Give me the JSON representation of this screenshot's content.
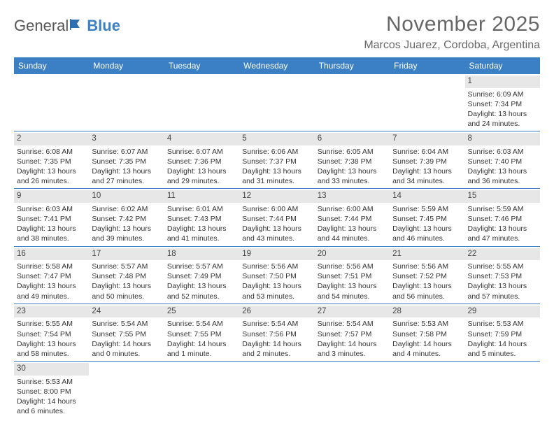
{
  "brand": {
    "part1": "General",
    "part2": "Blue"
  },
  "title": "November 2025",
  "location": "Marcos Juarez, Cordoba, Argentina",
  "colors": {
    "header_bg": "#3b7fc4",
    "header_text": "#ffffff",
    "daynum_bg": "#e7e7e7",
    "rule": "#3b7fc4",
    "body_text": "#333333",
    "title_text": "#666666"
  },
  "weekdays": [
    "Sunday",
    "Monday",
    "Tuesday",
    "Wednesday",
    "Thursday",
    "Friday",
    "Saturday"
  ],
  "weeks": [
    [
      null,
      null,
      null,
      null,
      null,
      null,
      {
        "n": "1",
        "sr": "Sunrise: 6:09 AM",
        "ss": "Sunset: 7:34 PM",
        "d1": "Daylight: 13 hours",
        "d2": "and 24 minutes."
      }
    ],
    [
      {
        "n": "2",
        "sr": "Sunrise: 6:08 AM",
        "ss": "Sunset: 7:35 PM",
        "d1": "Daylight: 13 hours",
        "d2": "and 26 minutes."
      },
      {
        "n": "3",
        "sr": "Sunrise: 6:07 AM",
        "ss": "Sunset: 7:35 PM",
        "d1": "Daylight: 13 hours",
        "d2": "and 27 minutes."
      },
      {
        "n": "4",
        "sr": "Sunrise: 6:07 AM",
        "ss": "Sunset: 7:36 PM",
        "d1": "Daylight: 13 hours",
        "d2": "and 29 minutes."
      },
      {
        "n": "5",
        "sr": "Sunrise: 6:06 AM",
        "ss": "Sunset: 7:37 PM",
        "d1": "Daylight: 13 hours",
        "d2": "and 31 minutes."
      },
      {
        "n": "6",
        "sr": "Sunrise: 6:05 AM",
        "ss": "Sunset: 7:38 PM",
        "d1": "Daylight: 13 hours",
        "d2": "and 33 minutes."
      },
      {
        "n": "7",
        "sr": "Sunrise: 6:04 AM",
        "ss": "Sunset: 7:39 PM",
        "d1": "Daylight: 13 hours",
        "d2": "and 34 minutes."
      },
      {
        "n": "8",
        "sr": "Sunrise: 6:03 AM",
        "ss": "Sunset: 7:40 PM",
        "d1": "Daylight: 13 hours",
        "d2": "and 36 minutes."
      }
    ],
    [
      {
        "n": "9",
        "sr": "Sunrise: 6:03 AM",
        "ss": "Sunset: 7:41 PM",
        "d1": "Daylight: 13 hours",
        "d2": "and 38 minutes."
      },
      {
        "n": "10",
        "sr": "Sunrise: 6:02 AM",
        "ss": "Sunset: 7:42 PM",
        "d1": "Daylight: 13 hours",
        "d2": "and 39 minutes."
      },
      {
        "n": "11",
        "sr": "Sunrise: 6:01 AM",
        "ss": "Sunset: 7:43 PM",
        "d1": "Daylight: 13 hours",
        "d2": "and 41 minutes."
      },
      {
        "n": "12",
        "sr": "Sunrise: 6:00 AM",
        "ss": "Sunset: 7:44 PM",
        "d1": "Daylight: 13 hours",
        "d2": "and 43 minutes."
      },
      {
        "n": "13",
        "sr": "Sunrise: 6:00 AM",
        "ss": "Sunset: 7:44 PM",
        "d1": "Daylight: 13 hours",
        "d2": "and 44 minutes."
      },
      {
        "n": "14",
        "sr": "Sunrise: 5:59 AM",
        "ss": "Sunset: 7:45 PM",
        "d1": "Daylight: 13 hours",
        "d2": "and 46 minutes."
      },
      {
        "n": "15",
        "sr": "Sunrise: 5:59 AM",
        "ss": "Sunset: 7:46 PM",
        "d1": "Daylight: 13 hours",
        "d2": "and 47 minutes."
      }
    ],
    [
      {
        "n": "16",
        "sr": "Sunrise: 5:58 AM",
        "ss": "Sunset: 7:47 PM",
        "d1": "Daylight: 13 hours",
        "d2": "and 49 minutes."
      },
      {
        "n": "17",
        "sr": "Sunrise: 5:57 AM",
        "ss": "Sunset: 7:48 PM",
        "d1": "Daylight: 13 hours",
        "d2": "and 50 minutes."
      },
      {
        "n": "18",
        "sr": "Sunrise: 5:57 AM",
        "ss": "Sunset: 7:49 PM",
        "d1": "Daylight: 13 hours",
        "d2": "and 52 minutes."
      },
      {
        "n": "19",
        "sr": "Sunrise: 5:56 AM",
        "ss": "Sunset: 7:50 PM",
        "d1": "Daylight: 13 hours",
        "d2": "and 53 minutes."
      },
      {
        "n": "20",
        "sr": "Sunrise: 5:56 AM",
        "ss": "Sunset: 7:51 PM",
        "d1": "Daylight: 13 hours",
        "d2": "and 54 minutes."
      },
      {
        "n": "21",
        "sr": "Sunrise: 5:56 AM",
        "ss": "Sunset: 7:52 PM",
        "d1": "Daylight: 13 hours",
        "d2": "and 56 minutes."
      },
      {
        "n": "22",
        "sr": "Sunrise: 5:55 AM",
        "ss": "Sunset: 7:53 PM",
        "d1": "Daylight: 13 hours",
        "d2": "and 57 minutes."
      }
    ],
    [
      {
        "n": "23",
        "sr": "Sunrise: 5:55 AM",
        "ss": "Sunset: 7:54 PM",
        "d1": "Daylight: 13 hours",
        "d2": "and 58 minutes."
      },
      {
        "n": "24",
        "sr": "Sunrise: 5:54 AM",
        "ss": "Sunset: 7:55 PM",
        "d1": "Daylight: 14 hours",
        "d2": "and 0 minutes."
      },
      {
        "n": "25",
        "sr": "Sunrise: 5:54 AM",
        "ss": "Sunset: 7:55 PM",
        "d1": "Daylight: 14 hours",
        "d2": "and 1 minute."
      },
      {
        "n": "26",
        "sr": "Sunrise: 5:54 AM",
        "ss": "Sunset: 7:56 PM",
        "d1": "Daylight: 14 hours",
        "d2": "and 2 minutes."
      },
      {
        "n": "27",
        "sr": "Sunrise: 5:54 AM",
        "ss": "Sunset: 7:57 PM",
        "d1": "Daylight: 14 hours",
        "d2": "and 3 minutes."
      },
      {
        "n": "28",
        "sr": "Sunrise: 5:53 AM",
        "ss": "Sunset: 7:58 PM",
        "d1": "Daylight: 14 hours",
        "d2": "and 4 minutes."
      },
      {
        "n": "29",
        "sr": "Sunrise: 5:53 AM",
        "ss": "Sunset: 7:59 PM",
        "d1": "Daylight: 14 hours",
        "d2": "and 5 minutes."
      }
    ],
    [
      {
        "n": "30",
        "sr": "Sunrise: 5:53 AM",
        "ss": "Sunset: 8:00 PM",
        "d1": "Daylight: 14 hours",
        "d2": "and 6 minutes."
      },
      null,
      null,
      null,
      null,
      null,
      null
    ]
  ]
}
